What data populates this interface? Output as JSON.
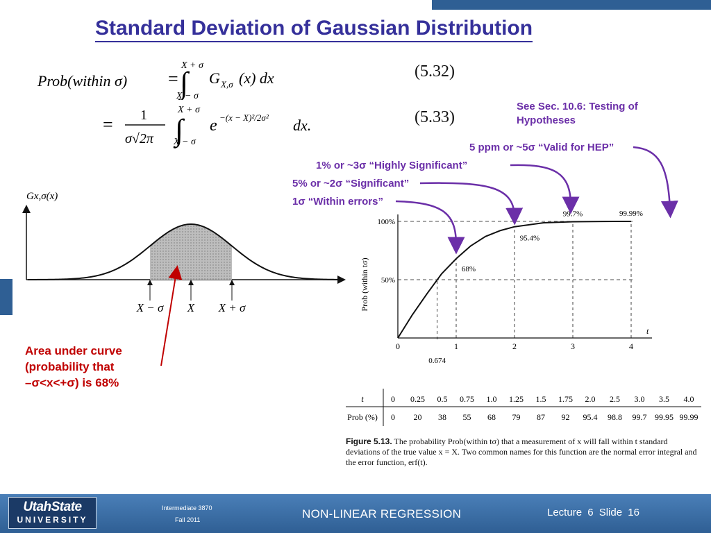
{
  "slide": {
    "title": "Standard Deviation of Gaussian Distribution"
  },
  "equations": {
    "eq1": {
      "lhs": "Prob(within σ)",
      "upper_limit": "X + σ",
      "lower_limit": "X − σ",
      "integrand": "G",
      "subscript": "X,σ",
      "tail": "(x) dx",
      "number": "(5.32)"
    },
    "eq2": {
      "numerator": "1",
      "denominator": "σ√2π",
      "upper_limit": "X + σ",
      "lower_limit": "X − σ",
      "exp_base": "e",
      "exponent": "−(x − X)²/2σ²",
      "tail": "dx.",
      "number": "(5.33)"
    }
  },
  "annotations": {
    "see_sec_line1": "See Sec. 10.6: Testing of",
    "see_sec_line2": "Hypotheses",
    "ppm": "5 ppm or ~5σ “Valid for HEP”",
    "one_percent": "1% or ~3σ “Highly Significant”",
    "five_percent": "5% or ~2σ “Significant”",
    "one_sigma": "1σ “Within errors”",
    "area_line1": "Area under curve",
    "area_line2": "(probability that",
    "area_line3": "–σ<x<+σ) is 68%"
  },
  "gaussian_plot": {
    "ylabel": "Gx,σ(x)",
    "tick_left": "X − σ",
    "tick_center": "X",
    "tick_right": "X + σ"
  },
  "chart_data": {
    "type": "line",
    "xlabel": "t",
    "ylabel": "Prob (within tσ)",
    "xlim": [
      0,
      4
    ],
    "ylim": [
      0,
      100
    ],
    "x_ticks": [
      "0",
      "1",
      "2",
      "3",
      "4"
    ],
    "y_ticks": [
      "50%",
      "100%"
    ],
    "extra_tick": "0.674",
    "x": [
      0,
      0.25,
      0.5,
      0.75,
      1.0,
      1.25,
      1.5,
      1.75,
      2.0,
      2.5,
      3.0,
      3.5,
      4.0
    ],
    "y": [
      0,
      20,
      38,
      55,
      68,
      79,
      87,
      92,
      95.4,
      98.8,
      99.7,
      99.95,
      99.99
    ],
    "point_labels": [
      {
        "t": 1,
        "label": "68%"
      },
      {
        "t": 2,
        "label": "95.4%"
      },
      {
        "t": 3,
        "label": "99.7%"
      },
      {
        "t": 4,
        "label": "99.99%"
      }
    ]
  },
  "table": {
    "row1_label": "t",
    "row2_label": "Prob (%)",
    "t_values": [
      "0",
      "0.25",
      "0.5",
      "0.75",
      "1.0",
      "1.25",
      "1.5",
      "1.75",
      "2.0",
      "2.5",
      "3.0",
      "3.5",
      "4.0"
    ],
    "prob_values": [
      "0",
      "20",
      "38",
      "55",
      "68",
      "79",
      "87",
      "92",
      "95.4",
      "98.8",
      "99.7",
      "99.95",
      "99.99"
    ]
  },
  "caption": {
    "label": "Figure 5.13.",
    "text": "The probability Prob(within tσ) that a measurement of x will fall within t standard deviations of the true value x = X. Two common names for this function are the normal error integral and the error function, erf(t)."
  },
  "footer": {
    "logo_line1": "UtahState",
    "logo_line2": "UNIVERSITY",
    "course": "Intermediate 3870",
    "term": "Fall 2011",
    "topic": "NON-LINEAR REGRESSION",
    "lecture": "Lecture 6 Slide 16"
  },
  "colors": {
    "title": "#35309a",
    "purple_arrows": "#6b2fa8",
    "red_note": "#c00000",
    "footer": "#3a6ea5"
  }
}
